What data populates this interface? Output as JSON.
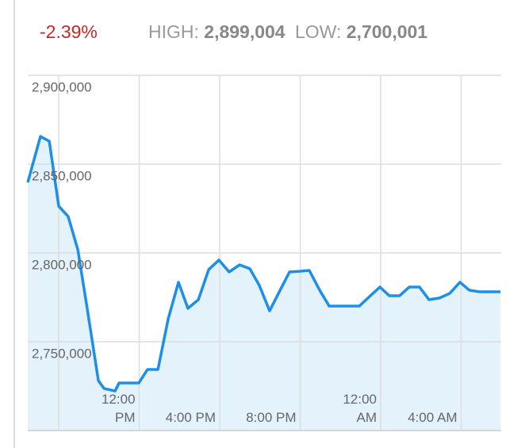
{
  "chart_data": {
    "type": "area",
    "change": "-2.39%",
    "high_label": "HIGH:",
    "high": "2,899,004",
    "low_label": "LOW:",
    "low": "2,700,001",
    "x": [
      6.46,
      7.09,
      7.53,
      8.0,
      8.47,
      8.95,
      9.42,
      9.97,
      10.25,
      10.8,
      11.0,
      11.39,
      11.98,
      12.41,
      12.93,
      13.44,
      13.95,
      14.42,
      14.94,
      15.45,
      15.96,
      16.47,
      16.99,
      17.5,
      17.97,
      18.48,
      18.96,
      19.47,
      19.98,
      20.45,
      20.97,
      21.44,
      21.95,
      22.46,
      22.94,
      23.45,
      23.96,
      24.43,
      24.94,
      25.42,
      25.93,
      26.4,
      26.92,
      27.43,
      27.94,
      28.41,
      28.93,
      29.4,
      29.95
    ],
    "values": [
      2839700,
      2865600,
      2862900,
      2826300,
      2820500,
      2801800,
      2768300,
      2728100,
      2723700,
      2722300,
      2726800,
      2726800,
      2726800,
      2734400,
      2734400,
      2762900,
      2783500,
      2768800,
      2773700,
      2790600,
      2796000,
      2789300,
      2793300,
      2791100,
      2781700,
      2767400,
      2778100,
      2789300,
      2789700,
      2790200,
      2779000,
      2770100,
      2770100,
      2770100,
      2770100,
      2775500,
      2780800,
      2775900,
      2775900,
      2780800,
      2780800,
      2773700,
      2774600,
      2777200,
      2783500,
      2779000,
      2778100,
      2778100,
      2778100
    ],
    "color": "#1e8fe8",
    "fill": "#e4f2fc",
    "xlim": [
      6.46,
      29.99
    ],
    "xgrid": [
      8,
      12,
      16,
      20,
      24,
      28
    ],
    "xticks": [
      {
        "value": 12,
        "label": "12:00 PM"
      },
      {
        "value": 16,
        "label": "4:00 PM"
      },
      {
        "value": 20,
        "label": "8:00 PM"
      },
      {
        "value": 24,
        "label": "12:00 AM"
      },
      {
        "value": 28,
        "label": "4:00 AM"
      }
    ],
    "ylim": [
      2700000,
      2900000
    ],
    "yticks": [
      {
        "value": 2900000,
        "label": "2,900,000"
      },
      {
        "value": 2850000,
        "label": "2,850,000"
      },
      {
        "value": 2800000,
        "label": "2,800,000"
      },
      {
        "value": 2750000,
        "label": "2,750,000"
      }
    ],
    "grid": true
  }
}
